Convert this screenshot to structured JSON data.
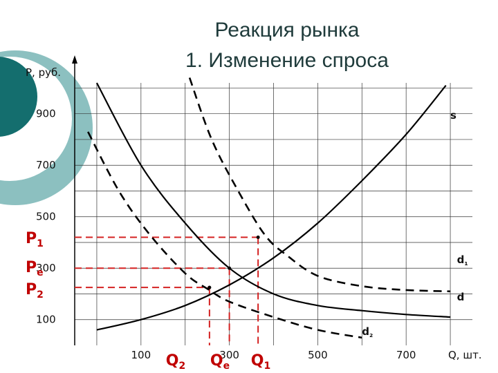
{
  "title_line1": "Реакция рынка",
  "title_line2": "1. Изменение   спроса",
  "colors": {
    "accent_teal": "#146e6e",
    "light_teal": "#8cc0c0",
    "guide_red": "#d42020"
  },
  "chart_data": {
    "type": "line",
    "xlabel": "Q, шт.",
    "ylabel": "P, руб.",
    "xlim": [
      -50,
      850
    ],
    "ylim": [
      0,
      1020
    ],
    "grid": true,
    "x_ticks": [
      100,
      300,
      500,
      700
    ],
    "y_ticks": [
      100,
      300,
      500,
      700,
      900
    ],
    "x_tick_labels": [
      "100",
      "300",
      "500",
      "700"
    ],
    "y_tick_labels": [
      "100",
      "300",
      "500",
      "700",
      "900"
    ],
    "series": [
      {
        "name": "s",
        "style": "solid",
        "x": [
          0,
          100,
          200,
          300,
          400,
          500,
          600,
          700,
          790
        ],
        "y": [
          60,
          100,
          155,
          235,
          340,
          475,
          640,
          820,
          1010
        ]
      },
      {
        "name": "d",
        "style": "solid",
        "x": [
          0,
          100,
          200,
          300,
          400,
          500,
          600,
          700,
          800
        ],
        "y": [
          1020,
          700,
          475,
          300,
          200,
          155,
          135,
          120,
          110
        ]
      },
      {
        "name": "d₁",
        "style": "dashed",
        "x": [
          210,
          260,
          320,
          380,
          430,
          500,
          600,
          700,
          800
        ],
        "y": [
          1040,
          800,
          600,
          430,
          350,
          270,
          230,
          215,
          210
        ]
      },
      {
        "name": "d₂",
        "style": "dashed",
        "x": [
          -20,
          50,
          120,
          200,
          250,
          300,
          400,
          500,
          600
        ],
        "y": [
          830,
          600,
          430,
          280,
          220,
          170,
          110,
          60,
          30
        ]
      }
    ],
    "equilibria": [
      {
        "p_label": "P",
        "p_sub": "1",
        "q_label": "Q",
        "q_sub": "1",
        "q": 365,
        "p": 420
      },
      {
        "p_label": "P",
        "p_sub": "e",
        "q_label": "Q",
        "q_sub": "e",
        "q": 300,
        "p": 300
      },
      {
        "p_label": "P",
        "p_sub": "2",
        "q_label": "Q",
        "q_sub": "2",
        "q": 255,
        "p": 225
      }
    ],
    "curve_labels": [
      {
        "text": "s",
        "series": 0,
        "q": 800,
        "p": 880
      },
      {
        "text": "d₁",
        "series": 2,
        "q": 815,
        "p": 320
      },
      {
        "text": "d",
        "series": 1,
        "q": 815,
        "p": 175
      },
      {
        "text": "d₂",
        "series": 3,
        "q": 600,
        "p": 40
      }
    ]
  }
}
